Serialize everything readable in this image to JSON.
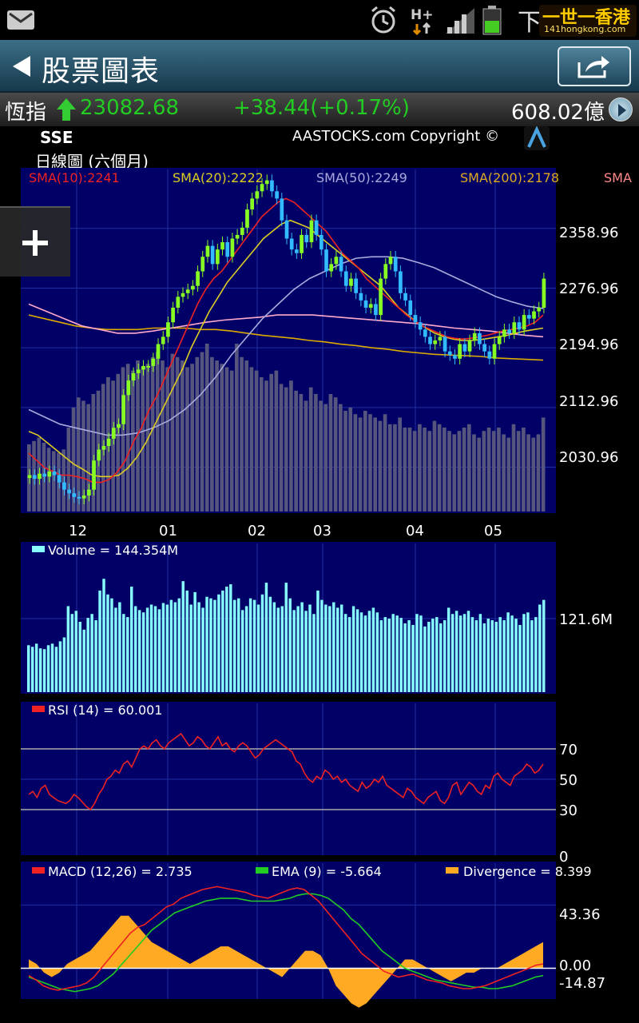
{
  "status_bar": {
    "carrier": "下",
    "logo_text_1": "一世一香港",
    "logo_text_2": "141hongkong.com"
  },
  "header": {
    "title": "股票圖表",
    "back_icon": "back-arrow-icon",
    "share_icon": "share-icon"
  },
  "ticker": {
    "name": "恆指",
    "price": "23082.68",
    "change": "+38.44(+0.17%)",
    "turnover": "608.02億"
  },
  "chart": {
    "symbol": "SSE",
    "copyright": "AASTOCKS.com Copyright ©",
    "period": "日線圖 (六個月)",
    "zoom_label": "+"
  },
  "colors": {
    "panel_bg": "#000066",
    "sma10": "#ee2222",
    "sma20": "#ddcc22",
    "sma50": "#aaaadd",
    "sma200": "#ffaacc",
    "candle_up": "#88ff22",
    "candle_down": "#33bbff",
    "volume": "#88ffff",
    "rsi": "#ee2222",
    "macd": "#ee2222",
    "ema": "#22cc22",
    "divergence": "#ffaa22"
  },
  "chart_data": [
    {
      "type": "candlestick",
      "legend": [
        "SMA(10):2241",
        "SMA(20):2222",
        "SMA(50):2249",
        "SMA(200):2178",
        "SMA"
      ],
      "y_ticks": [
        "2358.96",
        "2276.96",
        "2194.96",
        "2112.96",
        "2030.96"
      ],
      "x_ticks": [
        "12",
        "01",
        "02",
        "03",
        "04",
        "05"
      ],
      "ylim": [
        1970,
        2440
      ],
      "close": [
        2020,
        2015,
        2022,
        2018,
        2025,
        2020,
        2010,
        2000,
        1995,
        1990,
        1988,
        1992,
        2000,
        2040,
        2055,
        2060,
        2070,
        2085,
        2090,
        2130,
        2150,
        2160,
        2165,
        2170,
        2170,
        2180,
        2200,
        2210,
        2230,
        2250,
        2265,
        2270,
        2275,
        2280,
        2300,
        2320,
        2335,
        2310,
        2330,
        2340,
        2320,
        2345,
        2350,
        2360,
        2385,
        2400,
        2410,
        2420,
        2425,
        2410,
        2400,
        2370,
        2345,
        2330,
        2325,
        2350,
        2340,
        2370,
        2350,
        2330,
        2300,
        2310,
        2320,
        2300,
        2280,
        2290,
        2270,
        2260,
        2250,
        2255,
        2240,
        2290,
        2310,
        2320,
        2300,
        2270,
        2260,
        2240,
        2230,
        2220,
        2210,
        2200,
        2205,
        2210,
        2190,
        2185,
        2180,
        2200,
        2190,
        2205,
        2215,
        2200,
        2190,
        2180,
        2200,
        2210,
        2220,
        2215,
        2230,
        2220,
        2240,
        2235,
        2245,
        2250,
        2290
      ],
      "sma10": [
        2050,
        2040,
        2030,
        2025,
        2020,
        2020,
        2018,
        2015,
        2010,
        2010,
        2014,
        2024,
        2040,
        2065,
        2085,
        2110,
        2130,
        2155,
        2180,
        2205,
        2230,
        2255,
        2275,
        2290,
        2300,
        2315,
        2330,
        2345,
        2360,
        2375,
        2385,
        2395,
        2400,
        2395,
        2385,
        2375,
        2365,
        2355,
        2340,
        2325,
        2315,
        2305,
        2290,
        2280,
        2270,
        2260,
        2250,
        2240,
        2232,
        2225,
        2220,
        2215,
        2210,
        2208,
        2207,
        2208,
        2210,
        2212,
        2215,
        2218,
        2220,
        2222,
        2225,
        2230,
        2240
      ],
      "sma20": [
        2080,
        2075,
        2065,
        2055,
        2045,
        2035,
        2028,
        2020,
        2018,
        2018,
        2020,
        2030,
        2045,
        2065,
        2090,
        2115,
        2140,
        2165,
        2195,
        2220,
        2245,
        2265,
        2285,
        2300,
        2315,
        2330,
        2345,
        2355,
        2365,
        2370,
        2365,
        2360,
        2350,
        2340,
        2330,
        2320,
        2310,
        2300,
        2290,
        2280,
        2265,
        2250,
        2240,
        2230,
        2222,
        2215,
        2210,
        2207,
        2205,
        2205,
        2206,
        2208,
        2210,
        2212,
        2215,
        2218,
        2220,
        2222
      ],
      "sma50": [
        2110,
        2100,
        2090,
        2085,
        2080,
        2075,
        2075,
        2078,
        2085,
        2095,
        2110,
        2130,
        2155,
        2185,
        2210,
        2235,
        2255,
        2275,
        2290,
        2300,
        2310,
        2318,
        2320,
        2320,
        2318,
        2312,
        2305,
        2295,
        2285,
        2275,
        2265,
        2258,
        2252,
        2249
      ],
      "sma200": [
        2240,
        2235,
        2230,
        2225,
        2222,
        2220,
        2220,
        2220,
        2222,
        2222,
        2222,
        2220,
        2220,
        2218,
        2215,
        2212,
        2210,
        2208,
        2205,
        2203,
        2200,
        2198,
        2195,
        2193,
        2190,
        2188,
        2186,
        2185,
        2184,
        2183,
        2181,
        2180,
        2179,
        2178
      ],
      "sma_pink": [
        2255,
        2245,
        2235,
        2225,
        2220,
        2215,
        2215,
        2218,
        2222,
        2226,
        2230,
        2233,
        2235,
        2237,
        2240,
        2240,
        2240,
        2238,
        2236,
        2234,
        2232,
        2230,
        2228,
        2225,
        2222,
        2220,
        2218,
        2215,
        2212,
        2210
      ],
      "volume_bg": [
        40,
        42,
        44,
        41,
        38,
        36,
        35,
        37,
        50,
        62,
        68,
        66,
        64,
        70,
        72,
        76,
        80,
        78,
        82,
        86,
        88,
        84,
        90,
        86,
        88,
        92,
        95,
        90,
        86,
        94,
        92,
        90,
        86,
        88,
        92,
        95,
        100,
        92,
        90,
        88,
        86,
        84,
        100,
        92,
        90,
        86,
        84,
        80,
        78,
        82,
        84,
        76,
        74,
        78,
        72,
        70,
        66,
        74,
        70,
        66,
        64,
        70,
        68,
        64,
        60,
        62,
        58,
        56,
        60,
        58,
        56,
        54,
        58,
        52,
        52,
        56,
        50,
        50,
        48,
        52,
        50,
        48,
        54,
        52,
        50,
        48,
        46,
        48,
        50,
        52,
        46,
        44,
        48,
        50,
        48,
        50,
        46,
        44,
        52,
        48,
        50,
        46,
        44,
        46,
        56
      ]
    },
    {
      "type": "bar",
      "legend": "Volume  = 144.354M",
      "y_ticks": [
        "121.6M"
      ],
      "ylim": [
        0,
        180
      ],
      "values": [
        60,
        58,
        62,
        56,
        55,
        60,
        62,
        58,
        65,
        70,
        110,
        100,
        104,
        90,
        80,
        95,
        100,
        92,
        130,
        145,
        125,
        120,
        108,
        115,
        100,
        96,
        135,
        110,
        105,
        102,
        108,
        112,
        110,
        106,
        114,
        112,
        118,
        115,
        120,
        142,
        130,
        112,
        128,
        115,
        108,
        122,
        120,
        118,
        125,
        130,
        135,
        138,
        118,
        120,
        105,
        110,
        120,
        118,
        112,
        125,
        140,
        122,
        115,
        108,
        110,
        140,
        120,
        105,
        110,
        115,
        104,
        112,
        100,
        130,
        118,
        112,
        110,
        115,
        108,
        112,
        100,
        96,
        110,
        106,
        102,
        98,
        104,
        108,
        102,
        92,
        96,
        94,
        100,
        98,
        95,
        88,
        92,
        86,
        100,
        98,
        84,
        90,
        94,
        96,
        88,
        92,
        108,
        100,
        104,
        98,
        100,
        104,
        96,
        92,
        100,
        88,
        94,
        92,
        90,
        96,
        92,
        102,
        98,
        94,
        86,
        100,
        102,
        92,
        96,
        112,
        118
      ]
    },
    {
      "type": "line",
      "legend": "RSI (14)  = 60.001",
      "y_ticks": [
        "70",
        "50",
        "30",
        "0"
      ],
      "ylim": [
        0,
        100
      ],
      "values": [
        40,
        42,
        38,
        44,
        46,
        40,
        38,
        36,
        35,
        34,
        36,
        40,
        38,
        35,
        32,
        30,
        34,
        40,
        44,
        50,
        52,
        56,
        54,
        60,
        62,
        58,
        64,
        70,
        72,
        70,
        74,
        76,
        72,
        70,
        74,
        76,
        78,
        80,
        76,
        72,
        74,
        78,
        76,
        72,
        70,
        74,
        78,
        72,
        74,
        70,
        68,
        72,
        74,
        72,
        68,
        64,
        66,
        70,
        72,
        74,
        76,
        74,
        72,
        70,
        68,
        62,
        60,
        54,
        50,
        48,
        52,
        50,
        56,
        54,
        50,
        52,
        48,
        50,
        46,
        44,
        42,
        48,
        44,
        46,
        50,
        48,
        52,
        46,
        44,
        42,
        40,
        38,
        44,
        42,
        38,
        36,
        34,
        38,
        40,
        42,
        36,
        34,
        38,
        46,
        48,
        40,
        44,
        48,
        46,
        42,
        40,
        46,
        44,
        52,
        54,
        50,
        48,
        46,
        52,
        54,
        56,
        60,
        58,
        54,
        56,
        60
      ]
    },
    {
      "type": "line",
      "legend_macd": "MACD (12,26) = 2.735",
      "legend_ema": "EMA (9) = -5.664",
      "legend_div": "Divergence = 8.399",
      "y_ticks": [
        "43.36",
        "0.00",
        "-14.87"
      ],
      "ylim": [
        -20,
        60
      ],
      "macd": [
        -5,
        -8,
        -12,
        -14,
        -15,
        -14,
        -13,
        -12,
        -10,
        -6,
        0,
        6,
        12,
        18,
        24,
        28,
        30,
        34,
        38,
        42,
        44,
        48,
        50,
        52,
        54,
        55,
        56,
        55,
        54,
        53,
        52,
        50,
        49,
        48,
        50,
        52,
        54,
        55,
        54,
        50,
        46,
        40,
        34,
        28,
        22,
        16,
        10,
        6,
        2,
        -2,
        -4,
        -6,
        -5,
        -4,
        -6,
        -8,
        -9,
        -10,
        -12,
        -13,
        -14,
        -14,
        -13,
        -12,
        -10,
        -8,
        -6,
        -4,
        -2,
        0,
        2,
        3
      ],
      "ema": [
        -6,
        -8,
        -10,
        -12,
        -14,
        -15,
        -16,
        -15,
        -14,
        -12,
        -8,
        -4,
        2,
        8,
        14,
        20,
        26,
        30,
        34,
        38,
        40,
        42,
        44,
        46,
        47,
        48,
        48,
        48,
        47,
        46,
        46,
        46,
        46,
        47,
        48,
        50,
        51,
        51,
        50,
        48,
        44,
        40,
        34,
        30,
        24,
        18,
        12,
        8,
        4,
        0,
        -2,
        -4,
        -6,
        -8,
        -9,
        -10,
        -11,
        -12,
        -13,
        -13,
        -14,
        -14,
        -13,
        -12,
        -10,
        -8,
        -6,
        -5
      ],
      "divergence": [
        2,
        1,
        -1,
        -2,
        -1,
        1,
        2,
        3,
        4,
        6,
        8,
        10,
        12,
        12,
        10,
        8,
        6,
        5,
        4,
        3,
        2,
        1,
        2,
        3,
        4,
        5,
        5,
        4,
        3,
        2,
        1,
        0,
        -1,
        -2,
        0,
        2,
        4,
        4,
        3,
        0,
        -4,
        -6,
        -8,
        -9,
        -8,
        -6,
        -4,
        -2,
        0,
        2,
        2,
        1,
        0,
        -1,
        -2,
        -3,
        -2,
        -1,
        -1,
        0,
        0,
        0,
        1,
        2,
        3,
        4,
        5,
        6
      ]
    }
  ]
}
